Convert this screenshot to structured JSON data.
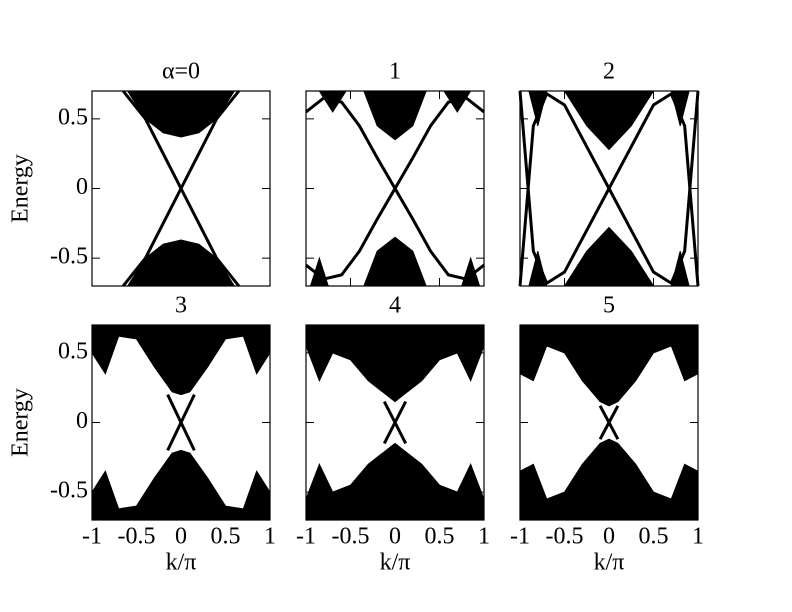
{
  "chart_data": [
    {
      "type": "band",
      "title": "α=0",
      "y_label": "Energy",
      "xlim": [
        -1,
        1
      ],
      "ylim": [
        -0.7,
        0.7
      ],
      "xticks": [
        -1,
        -0.5,
        0,
        0.5,
        1
      ],
      "yticks": [
        -0.5,
        0,
        0.5
      ],
      "show_xtick_labels": false,
      "show_ytick_labels": true,
      "color": "#000000",
      "bands": [
        {
          "x": [
            -0.6,
            -0.4,
            -0.2,
            0,
            0.2,
            0.4,
            0.6
          ],
          "lower": [
            0.7,
            0.5,
            0.4,
            0.37,
            0.4,
            0.5,
            0.7
          ],
          "upper": [
            0.7,
            0.7,
            0.7,
            0.7,
            0.7,
            0.7,
            0.7
          ]
        },
        {
          "x": [
            -0.6,
            -0.4,
            -0.2,
            0,
            0.2,
            0.4,
            0.6
          ],
          "lower": [
            -0.7,
            -0.7,
            -0.7,
            -0.7,
            -0.7,
            -0.7,
            -0.7
          ],
          "upper": [
            -0.7,
            -0.5,
            -0.4,
            -0.37,
            -0.4,
            -0.5,
            -0.7
          ]
        }
      ],
      "lines": [
        {
          "x": [
            -0.65,
            -0.4,
            -0.2,
            0,
            0.2,
            0.4,
            0.65
          ],
          "y": [
            0.7,
            0.5,
            0.25,
            0,
            -0.25,
            -0.5,
            -0.7
          ]
        },
        {
          "x": [
            -0.65,
            -0.4,
            -0.2,
            0,
            0.2,
            0.4,
            0.65
          ],
          "y": [
            -0.7,
            -0.5,
            -0.25,
            0,
            0.25,
            0.5,
            0.7
          ]
        }
      ]
    },
    {
      "type": "band",
      "title": "1",
      "xlim": [
        -1,
        1
      ],
      "ylim": [
        -0.7,
        0.7
      ],
      "xticks": [
        -1,
        -0.5,
        0,
        0.5,
        1
      ],
      "yticks": [
        -0.5,
        0,
        0.5
      ],
      "show_xtick_labels": false,
      "show_ytick_labels": false,
      "color": "#000000",
      "bands": [
        {
          "x": [
            -0.35,
            -0.2,
            0,
            0.2,
            0.35
          ],
          "lower": [
            0.7,
            0.45,
            0.35,
            0.45,
            0.7
          ],
          "upper": [
            0.7,
            0.7,
            0.7,
            0.7,
            0.7
          ]
        },
        {
          "x": [
            -0.35,
            -0.2,
            0,
            0.2,
            0.35
          ],
          "lower": [
            -0.7,
            -0.7,
            -0.7,
            -0.7,
            -0.7
          ],
          "upper": [
            -0.7,
            -0.45,
            -0.35,
            -0.45,
            -0.7
          ]
        },
        {
          "x": [
            -0.85,
            -0.7,
            -0.55
          ],
          "lower": [
            0.7,
            0.55,
            0.7
          ],
          "upper": [
            0.7,
            0.7,
            0.7
          ]
        },
        {
          "x": [
            0.55,
            0.7,
            0.85
          ],
          "lower": [
            0.7,
            0.55,
            0.7
          ],
          "upper": [
            0.7,
            0.7,
            0.7
          ]
        },
        {
          "x": [
            -0.95,
            -0.85,
            -0.75
          ],
          "lower": [
            -0.7,
            -0.7,
            -0.7
          ],
          "upper": [
            -0.7,
            -0.5,
            -0.7
          ]
        },
        {
          "x": [
            0.75,
            0.85,
            0.95
          ],
          "lower": [
            -0.7,
            -0.7,
            -0.7
          ],
          "upper": [
            -0.7,
            -0.5,
            -0.7
          ]
        }
      ],
      "lines": [
        {
          "x": [
            -1,
            -0.8,
            -0.6,
            -0.4,
            -0.2,
            0,
            0.2,
            0.4,
            0.6,
            0.8,
            1
          ],
          "y": [
            0.55,
            0.65,
            0.62,
            0.45,
            0.22,
            0,
            -0.22,
            -0.45,
            -0.62,
            -0.65,
            -0.55
          ]
        },
        {
          "x": [
            -1,
            -0.8,
            -0.6,
            -0.4,
            -0.2,
            0,
            0.2,
            0.4,
            0.6,
            0.8,
            1
          ],
          "y": [
            -0.55,
            -0.65,
            -0.62,
            -0.45,
            -0.22,
            0,
            0.22,
            0.45,
            0.62,
            0.65,
            0.55
          ]
        }
      ]
    },
    {
      "type": "band",
      "title": "2",
      "xlim": [
        -1,
        1
      ],
      "ylim": [
        -0.7,
        0.7
      ],
      "xticks": [
        -1,
        -0.5,
        0,
        0.5,
        1
      ],
      "yticks": [
        -0.5,
        0,
        0.5
      ],
      "show_xtick_labels": false,
      "show_ytick_labels": false,
      "color": "#000000",
      "bands": [
        {
          "x": [
            -0.5,
            -0.25,
            0,
            0.25,
            0.5
          ],
          "lower": [
            0.7,
            0.45,
            0.28,
            0.45,
            0.7
          ],
          "upper": [
            0.7,
            0.7,
            0.7,
            0.7,
            0.7
          ]
        },
        {
          "x": [
            -0.5,
            -0.25,
            0,
            0.25,
            0.5
          ],
          "lower": [
            -0.7,
            -0.7,
            -0.7,
            -0.7,
            -0.7
          ],
          "upper": [
            -0.7,
            -0.45,
            -0.28,
            -0.45,
            -0.7
          ]
        },
        {
          "x": [
            -0.9,
            -0.8,
            -0.7
          ],
          "lower": [
            -0.7,
            -0.7,
            -0.7
          ],
          "upper": [
            -0.7,
            -0.45,
            -0.7
          ]
        },
        {
          "x": [
            0.7,
            0.8,
            0.9
          ],
          "lower": [
            -0.7,
            -0.7,
            -0.7
          ],
          "upper": [
            -0.7,
            -0.45,
            -0.7
          ]
        },
        {
          "x": [
            -0.9,
            -0.8,
            -0.7
          ],
          "lower": [
            0.7,
            0.45,
            0.7
          ],
          "upper": [
            0.7,
            0.7,
            0.7
          ]
        },
        {
          "x": [
            0.7,
            0.8,
            0.9
          ],
          "lower": [
            0.7,
            0.45,
            0.7
          ],
          "upper": [
            0.7,
            0.7,
            0.7
          ]
        }
      ],
      "lines": [
        {
          "x": [
            -1,
            -0.85,
            -0.7,
            -0.5,
            -0.25,
            0,
            0.25,
            0.5,
            0.7,
            0.85,
            1
          ],
          "y": [
            -0.7,
            0.45,
            0.68,
            0.6,
            0.3,
            0,
            -0.3,
            -0.6,
            -0.68,
            -0.45,
            0.7
          ]
        },
        {
          "x": [
            -1,
            -0.85,
            -0.7,
            -0.5,
            -0.25,
            0,
            0.25,
            0.5,
            0.7,
            0.85,
            1
          ],
          "y": [
            0.7,
            -0.45,
            -0.68,
            -0.6,
            -0.3,
            0,
            0.3,
            0.6,
            0.68,
            0.45,
            -0.7
          ]
        }
      ]
    },
    {
      "type": "band",
      "title": "3",
      "y_label": "Energy",
      "x_label": "k/π",
      "xlim": [
        -1,
        1
      ],
      "ylim": [
        -0.7,
        0.7
      ],
      "xticks": [
        -1,
        -0.5,
        0,
        0.5,
        1
      ],
      "yticks": [
        -0.5,
        0,
        0.5
      ],
      "show_xtick_labels": true,
      "show_ytick_labels": true,
      "color": "#000000",
      "bands": [
        {
          "x": [
            -1,
            -0.85,
            -0.7,
            -0.5,
            -0.3,
            -0.1,
            0,
            0.1,
            0.3,
            0.5,
            0.7,
            0.85,
            1
          ],
          "lower": [
            0.5,
            0.35,
            0.62,
            0.6,
            0.4,
            0.22,
            0.2,
            0.22,
            0.4,
            0.6,
            0.62,
            0.35,
            0.5
          ],
          "upper": [
            0.7,
            0.7,
            0.7,
            0.7,
            0.7,
            0.7,
            0.7,
            0.7,
            0.7,
            0.7,
            0.7,
            0.7,
            0.7
          ]
        },
        {
          "x": [
            -1,
            -0.85,
            -0.7,
            -0.5,
            -0.3,
            -0.1,
            0,
            0.1,
            0.3,
            0.5,
            0.7,
            0.85,
            1
          ],
          "lower": [
            -0.7,
            -0.7,
            -0.7,
            -0.7,
            -0.7,
            -0.7,
            -0.7,
            -0.7,
            -0.7,
            -0.7,
            -0.7,
            -0.7,
            -0.7
          ],
          "upper": [
            -0.5,
            -0.35,
            -0.62,
            -0.6,
            -0.4,
            -0.22,
            -0.2,
            -0.22,
            -0.4,
            -0.6,
            -0.62,
            -0.35,
            -0.5
          ]
        }
      ],
      "lines": [
        {
          "x": [
            -0.15,
            0,
            0.15
          ],
          "y": [
            0.2,
            0,
            -0.2
          ]
        },
        {
          "x": [
            -0.15,
            0,
            0.15
          ],
          "y": [
            -0.2,
            0,
            0.2
          ]
        }
      ]
    },
    {
      "type": "band",
      "title": "4",
      "x_label": "k/π",
      "xlim": [
        -1,
        1
      ],
      "ylim": [
        -0.7,
        0.7
      ],
      "xticks": [
        -1,
        -0.5,
        0,
        0.5,
        1
      ],
      "yticks": [
        -0.5,
        0,
        0.5
      ],
      "show_xtick_labels": true,
      "show_ytick_labels": false,
      "color": "#000000",
      "bands": [
        {
          "x": [
            -1,
            -0.85,
            -0.7,
            -0.5,
            -0.3,
            -0.1,
            0,
            0.1,
            0.3,
            0.5,
            0.7,
            0.85,
            1
          ],
          "lower": [
            0.55,
            0.3,
            0.5,
            0.45,
            0.3,
            0.2,
            0.15,
            0.2,
            0.3,
            0.45,
            0.5,
            0.3,
            0.55
          ],
          "upper": [
            0.7,
            0.7,
            0.7,
            0.7,
            0.7,
            0.7,
            0.7,
            0.7,
            0.7,
            0.7,
            0.7,
            0.7,
            0.7
          ]
        },
        {
          "x": [
            -1,
            -0.85,
            -0.7,
            -0.5,
            -0.3,
            -0.1,
            0,
            0.1,
            0.3,
            0.5,
            0.7,
            0.85,
            1
          ],
          "lower": [
            -0.7,
            -0.7,
            -0.7,
            -0.7,
            -0.7,
            -0.7,
            -0.7,
            -0.7,
            -0.7,
            -0.7,
            -0.7,
            -0.7,
            -0.7
          ],
          "upper": [
            -0.55,
            -0.3,
            -0.5,
            -0.45,
            -0.3,
            -0.2,
            -0.15,
            -0.2,
            -0.3,
            -0.45,
            -0.5,
            -0.3,
            -0.55
          ]
        }
      ],
      "lines": [
        {
          "x": [
            -0.12,
            0,
            0.12
          ],
          "y": [
            0.15,
            0,
            -0.15
          ]
        },
        {
          "x": [
            -0.12,
            0,
            0.12
          ],
          "y": [
            -0.15,
            0,
            0.15
          ]
        }
      ]
    },
    {
      "type": "band",
      "title": "5",
      "x_label": "k/π",
      "xlim": [
        -1,
        1
      ],
      "ylim": [
        -0.7,
        0.7
      ],
      "xticks": [
        -1,
        -0.5,
        0,
        0.5,
        1
      ],
      "yticks": [
        -0.5,
        0,
        0.5
      ],
      "show_xtick_labels": true,
      "show_ytick_labels": false,
      "color": "#000000",
      "bands": [
        {
          "x": [
            -1,
            -0.85,
            -0.7,
            -0.5,
            -0.3,
            -0.1,
            0,
            0.1,
            0.3,
            0.5,
            0.7,
            0.85,
            1
          ],
          "lower": [
            0.35,
            0.3,
            0.55,
            0.5,
            0.3,
            0.15,
            0.12,
            0.15,
            0.3,
            0.5,
            0.55,
            0.3,
            0.35
          ],
          "upper": [
            0.7,
            0.7,
            0.7,
            0.7,
            0.7,
            0.7,
            0.7,
            0.7,
            0.7,
            0.7,
            0.7,
            0.7,
            0.7
          ]
        },
        {
          "x": [
            -1,
            -0.85,
            -0.7,
            -0.5,
            -0.3,
            -0.1,
            0,
            0.1,
            0.3,
            0.5,
            0.7,
            0.85,
            1
          ],
          "lower": [
            -0.7,
            -0.7,
            -0.7,
            -0.7,
            -0.7,
            -0.7,
            -0.7,
            -0.7,
            -0.7,
            -0.7,
            -0.7,
            -0.7,
            -0.7
          ],
          "upper": [
            -0.35,
            -0.3,
            -0.55,
            -0.5,
            -0.3,
            -0.15,
            -0.12,
            -0.15,
            -0.3,
            -0.5,
            -0.55,
            -0.3,
            -0.35
          ]
        }
      ],
      "lines": [
        {
          "x": [
            -0.1,
            0,
            0.1
          ],
          "y": [
            0.12,
            0,
            -0.12
          ]
        },
        {
          "x": [
            -0.1,
            0,
            0.1
          ],
          "y": [
            -0.12,
            0,
            0.12
          ]
        }
      ]
    }
  ]
}
